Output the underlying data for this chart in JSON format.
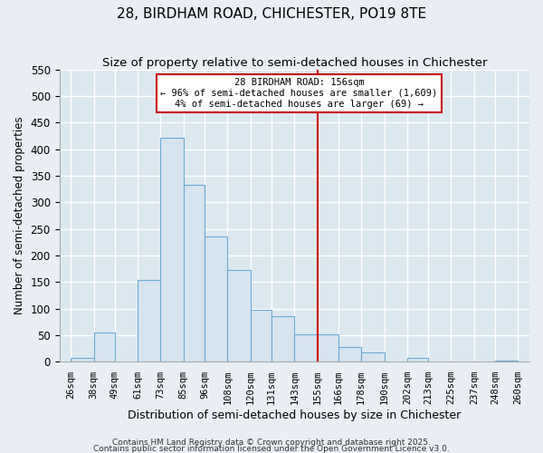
{
  "title1": "28, BIRDHAM ROAD, CHICHESTER, PO19 8TE",
  "title2": "Size of property relative to semi-detached houses in Chichester",
  "xlabel": "Distribution of semi-detached houses by size in Chichester",
  "ylabel": "Number of semi-detached properties",
  "bar_left_edges": [
    26,
    38,
    49,
    61,
    73,
    85,
    96,
    108,
    120,
    131,
    143,
    155,
    166,
    178,
    190,
    202,
    213,
    225,
    237,
    248
  ],
  "bar_widths": [
    12,
    11,
    12,
    12,
    12,
    11,
    12,
    12,
    11,
    12,
    12,
    11,
    12,
    12,
    12,
    11,
    12,
    12,
    11,
    12
  ],
  "bar_heights": [
    8,
    55,
    0,
    153,
    421,
    333,
    236,
    172,
    98,
    85,
    52,
    52,
    27,
    17,
    0,
    7,
    0,
    0,
    0,
    2
  ],
  "bar_color": "#d6e4f0",
  "bar_edgecolor": "#6aaad4",
  "vline_x": 155,
  "vline_color": "#cc0000",
  "annotation_title": "28 BIRDHAM ROAD: 156sqm",
  "annotation_line1": "← 96% of semi-detached houses are smaller (1,609)",
  "annotation_line2": "4% of semi-detached houses are larger (69) →",
  "annotation_box_color": "#ffffff",
  "annotation_box_edgecolor": "#cc0000",
  "ylim": [
    0,
    550
  ],
  "yticks": [
    0,
    50,
    100,
    150,
    200,
    250,
    300,
    350,
    400,
    450,
    500,
    550
  ],
  "tick_labels": [
    "26sqm",
    "38sqm",
    "49sqm",
    "61sqm",
    "73sqm",
    "85sqm",
    "96sqm",
    "108sqm",
    "120sqm",
    "131sqm",
    "143sqm",
    "155sqm",
    "166sqm",
    "178sqm",
    "190sqm",
    "202sqm",
    "213sqm",
    "225sqm",
    "237sqm",
    "248sqm",
    "260sqm"
  ],
  "tick_positions": [
    26,
    38,
    49,
    61,
    73,
    85,
    96,
    108,
    120,
    131,
    143,
    155,
    166,
    178,
    190,
    202,
    213,
    225,
    237,
    248,
    260
  ],
  "footnote1": "Contains HM Land Registry data © Crown copyright and database right 2025.",
  "footnote2": "Contains public sector information licensed under the Open Government Licence v3.0.",
  "background_color": "#e8eef4",
  "plot_bg_color": "#dce8f0",
  "grid_color": "#ffffff",
  "title1_fontsize": 11,
  "title2_fontsize": 9.5,
  "xlim_left": 20,
  "xlim_right": 266
}
